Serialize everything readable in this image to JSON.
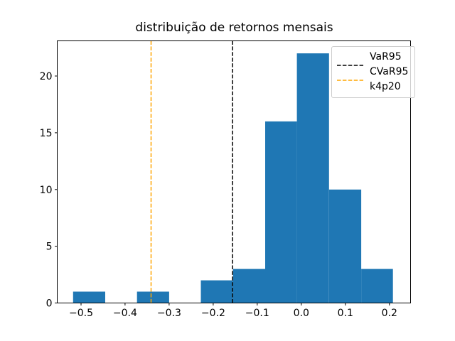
{
  "figure": {
    "background": "#ffffff"
  },
  "chart_data": {
    "type": "histogram",
    "title": "distribuição de retornos mensais",
    "xlabel": "",
    "ylabel": "",
    "grid": false,
    "legend_position": "upper right",
    "bar_color": "#1f77b4",
    "axis_color": "#000000",
    "bin_edges": [
      -0.518,
      -0.445,
      -0.373,
      -0.3,
      -0.228,
      -0.155,
      -0.082,
      -0.01,
      0.063,
      0.136,
      0.208
    ],
    "counts": [
      1,
      0,
      1,
      0,
      2,
      3,
      16,
      22,
      10,
      3
    ],
    "xlim": [
      -0.554,
      0.248
    ],
    "ylim": [
      0,
      23.1
    ],
    "x_tick_values": [
      -0.5,
      -0.4,
      -0.3,
      -0.2,
      -0.1,
      0.0,
      0.1,
      0.2
    ],
    "x_tick_labels": [
      "−0.5",
      "−0.4",
      "−0.3",
      "−0.2",
      "−0.1",
      "0.0",
      "0.1",
      "0.2"
    ],
    "y_tick_values": [
      0,
      5,
      10,
      15,
      20
    ],
    "y_tick_labels": [
      "0",
      "5",
      "10",
      "15",
      "20"
    ],
    "vlines": [
      {
        "name": "VaR95",
        "value": -0.156,
        "color": "#000000",
        "style": "dashed"
      },
      {
        "name": "CVaR95",
        "value": -0.341,
        "color": "#ffa500",
        "style": "dashed"
      }
    ]
  },
  "legend": {
    "items": [
      {
        "label": "VaR95",
        "color": "#000000",
        "dashed": true
      },
      {
        "label": "CVaR95",
        "color": "#ffa500",
        "dashed": true
      },
      {
        "label": "k4p20",
        "color": null,
        "dashed": false
      }
    ]
  }
}
